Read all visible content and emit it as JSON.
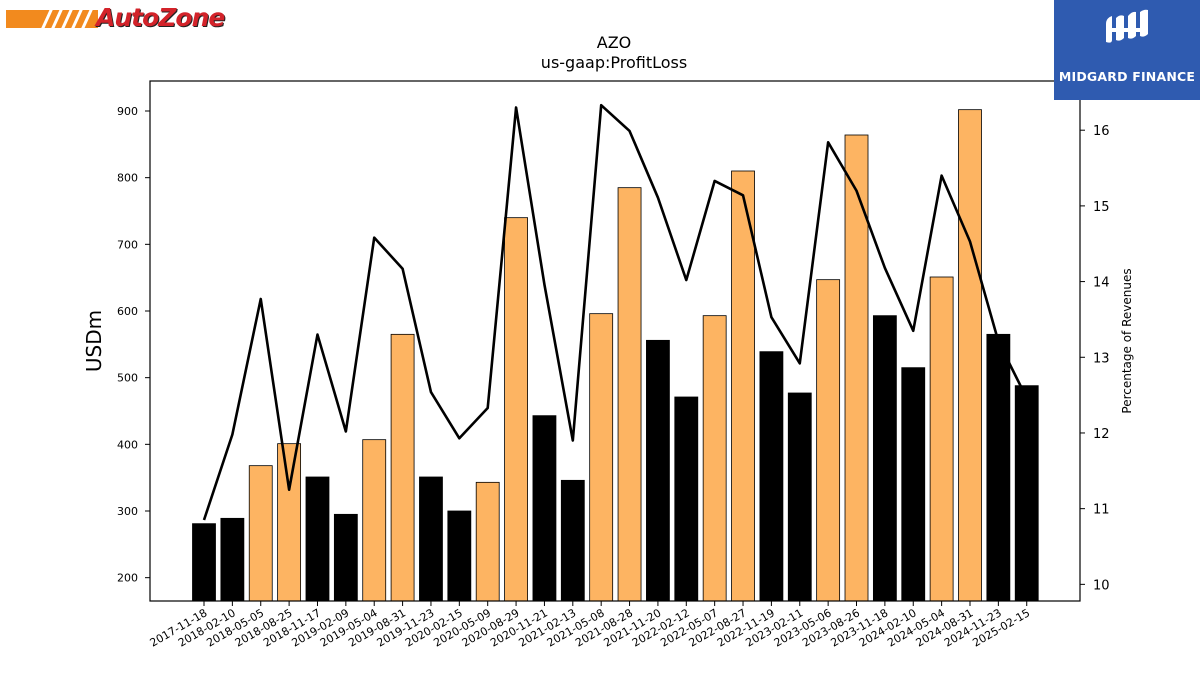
{
  "brand": {
    "left_logo_text": "AutoZone",
    "right_logo_text": "MIDGARD FINANCE",
    "accent_orange": "#f28a1e",
    "accent_red": "#d3232a",
    "right_logo_bg": "#2f5bb0"
  },
  "chart_data": {
    "type": "bar",
    "title": "AZO",
    "subtitle": "us-gaap:ProfitLoss",
    "ylabel": "USDm",
    "y2label": "Percentage of Revenues",
    "ylim": [
      165,
      945
    ],
    "y2lim": [
      9.78,
      16.65
    ],
    "yticks": [
      200,
      300,
      400,
      500,
      600,
      700,
      800,
      900
    ],
    "y2ticks": [
      10,
      11,
      12,
      13,
      14,
      15,
      16
    ],
    "categories": [
      "2017-11-18",
      "2018-02-10",
      "2018-05-05",
      "2018-08-25",
      "2018-11-17",
      "2019-02-09",
      "2019-05-04",
      "2019-08-31",
      "2019-11-23",
      "2020-02-15",
      "2020-05-09",
      "2020-08-29",
      "2020-11-21",
      "2021-02-13",
      "2021-05-08",
      "2021-08-28",
      "2021-11-20",
      "2022-02-12",
      "2022-05-07",
      "2022-08-27",
      "2022-11-19",
      "2023-02-11",
      "2023-05-06",
      "2023-08-26",
      "2023-11-18",
      "2024-02-10",
      "2024-05-04",
      "2024-08-31",
      "2024-11-23",
      "2025-02-15"
    ],
    "series": [
      {
        "kind": "bar",
        "values": [
          281,
          289,
          368,
          401,
          351,
          295,
          407,
          565,
          351,
          300,
          343,
          740,
          443,
          346,
          596,
          785,
          556,
          471,
          593,
          810,
          539,
          477,
          647,
          864,
          593,
          515,
          651,
          902,
          565,
          488
        ],
        "highlight": [
          false,
          false,
          true,
          true,
          false,
          false,
          true,
          true,
          false,
          false,
          true,
          true,
          false,
          false,
          true,
          true,
          false,
          false,
          true,
          true,
          false,
          false,
          true,
          true,
          false,
          false,
          true,
          true,
          false,
          false
        ],
        "color_dark": "#000000",
        "color_highlight": "#fdb462"
      },
      {
        "kind": "line",
        "axis": "right",
        "values": [
          10.85,
          11.98,
          13.77,
          11.25,
          13.3,
          12.02,
          14.58,
          14.17,
          12.54,
          11.93,
          12.33,
          16.3,
          13.96,
          11.9,
          16.33,
          15.99,
          15.11,
          14.02,
          15.33,
          15.14,
          13.53,
          12.92,
          15.84,
          15.2,
          14.18,
          13.35,
          15.4,
          14.53,
          13.21,
          12.46
        ],
        "color": "#000000"
      }
    ],
    "grid": false,
    "legend": "none"
  }
}
